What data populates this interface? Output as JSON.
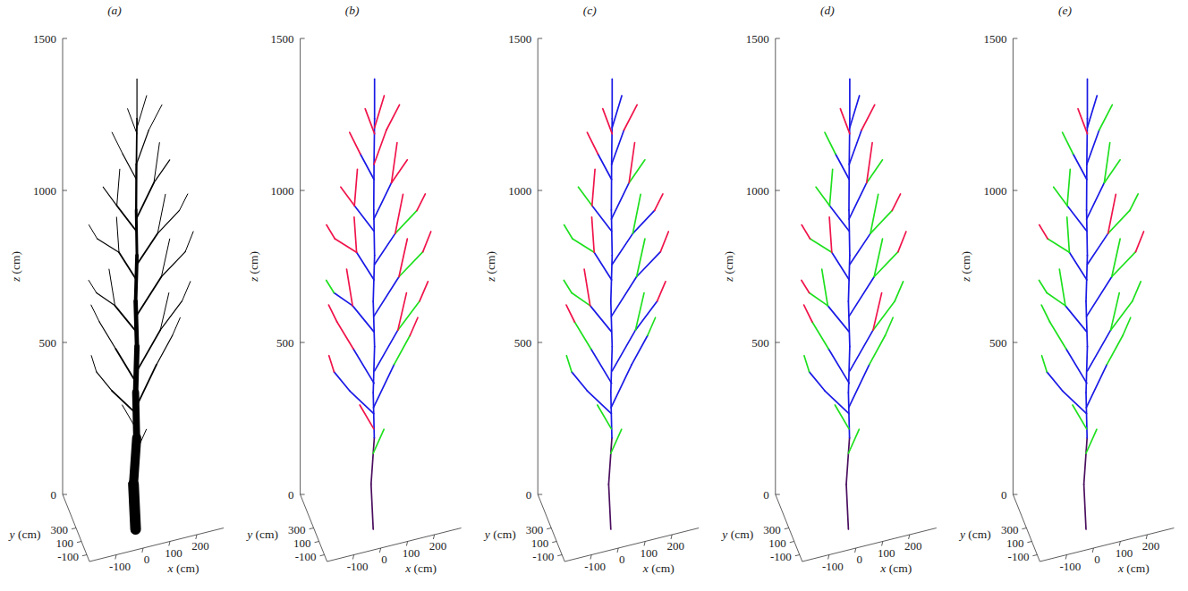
{
  "chart_data": {
    "type": "tree3d",
    "x_label": "x (cm)",
    "y_label": "y (cm)",
    "z_label": "z (cm)",
    "xlim": [
      -200,
      300
    ],
    "ylim": [
      -200,
      800
    ],
    "zlim": [
      0,
      1500
    ],
    "xticks": [
      -100,
      0,
      100,
      200
    ],
    "yticks": [
      -100,
      100,
      300
    ],
    "zticks": [
      0,
      500,
      1000,
      1500
    ],
    "branches": [
      {
        "start": [
          0,
          80,
          0
        ],
        "end": [
          -8,
          80,
          150
        ],
        "diameter": 40
      },
      {
        "start": [
          -8,
          80,
          150
        ],
        "end": [
          4,
          80,
          300
        ],
        "diameter": 34
      },
      {
        "start": [
          4,
          80,
          300
        ],
        "end": [
          0,
          80,
          450
        ],
        "diameter": 26
      },
      {
        "start": [
          0,
          80,
          450
        ],
        "end": [
          5,
          80,
          600
        ],
        "diameter": 20
      },
      {
        "start": [
          5,
          80,
          600
        ],
        "end": [
          0,
          80,
          750
        ],
        "diameter": 16
      },
      {
        "start": [
          0,
          80,
          750
        ],
        "end": [
          5,
          80,
          900
        ],
        "diameter": 13
      },
      {
        "start": [
          5,
          80,
          900
        ],
        "end": [
          2,
          80,
          1050
        ],
        "diameter": 10
      },
      {
        "start": [
          2,
          80,
          1050
        ],
        "end": [
          3,
          80,
          1200
        ],
        "diameter": 8
      },
      {
        "start": [
          3,
          80,
          1200
        ],
        "end": [
          5,
          80,
          1350
        ],
        "diameter": 6
      },
      {
        "start": [
          5,
          80,
          1350
        ],
        "end": [
          5,
          80,
          1480
        ],
        "diameter": 4
      },
      {
        "start": [
          0,
          80,
          250
        ],
        "end": [
          40,
          80,
          320
        ],
        "diameter": 3
      },
      {
        "start": [
          2,
          80,
          330
        ],
        "end": [
          -50,
          80,
          420
        ],
        "diameter": 3
      },
      {
        "start": [
          2,
          80,
          380
        ],
        "end": [
          -90,
          60,
          480
        ],
        "diameter": 6
      },
      {
        "start": [
          -90,
          60,
          480
        ],
        "end": [
          -150,
          40,
          560
        ],
        "diameter": 4
      },
      {
        "start": [
          -150,
          40,
          560
        ],
        "end": [
          -170,
          30,
          620
        ],
        "diameter": 2.5
      },
      {
        "start": [
          1,
          80,
          400
        ],
        "end": [
          80,
          100,
          520
        ],
        "diameter": 6
      },
      {
        "start": [
          80,
          100,
          520
        ],
        "end": [
          140,
          110,
          600
        ],
        "diameter": 4
      },
      {
        "start": [
          140,
          110,
          600
        ],
        "end": [
          170,
          120,
          650
        ],
        "diameter": 2.5
      },
      {
        "start": [
          3,
          80,
          480
        ],
        "end": [
          -70,
          120,
          600
        ],
        "diameter": 6
      },
      {
        "start": [
          -70,
          120,
          600
        ],
        "end": [
          -130,
          130,
          700
        ],
        "diameter": 4
      },
      {
        "start": [
          -130,
          130,
          700
        ],
        "end": [
          -160,
          140,
          760
        ],
        "diameter": 2.5
      },
      {
        "start": [
          5,
          80,
          520
        ],
        "end": [
          90,
          60,
          640
        ],
        "diameter": 6
      },
      {
        "start": [
          90,
          60,
          640
        ],
        "end": [
          170,
          50,
          720
        ],
        "diameter": 4
      },
      {
        "start": [
          90,
          60,
          640
        ],
        "end": [
          120,
          40,
          760
        ],
        "diameter": 2.5
      },
      {
        "start": [
          170,
          50,
          720
        ],
        "end": [
          200,
          40,
          780
        ],
        "diameter": 2.5
      },
      {
        "start": [
          2,
          80,
          650
        ],
        "end": [
          -80,
          50,
          760
        ],
        "diameter": 6
      },
      {
        "start": [
          -80,
          50,
          760
        ],
        "end": [
          -150,
          40,
          820
        ],
        "diameter": 4
      },
      {
        "start": [
          -80,
          50,
          760
        ],
        "end": [
          -100,
          70,
          880
        ],
        "diameter": 2.5
      },
      {
        "start": [
          -150,
          40,
          820
        ],
        "end": [
          -180,
          30,
          870
        ],
        "diameter": 2.5
      },
      {
        "start": [
          2,
          80,
          700
        ],
        "end": [
          100,
          120,
          800
        ],
        "diameter": 6
      },
      {
        "start": [
          100,
          120,
          800
        ],
        "end": [
          190,
          130,
          860
        ],
        "diameter": 4
      },
      {
        "start": [
          100,
          120,
          800
        ],
        "end": [
          130,
          110,
          920
        ],
        "diameter": 2.5
      },
      {
        "start": [
          190,
          130,
          860
        ],
        "end": [
          220,
          130,
          920
        ],
        "diameter": 2.5
      },
      {
        "start": [
          3,
          80,
          820
        ],
        "end": [
          -60,
          100,
          920
        ],
        "diameter": 6
      },
      {
        "start": [
          -60,
          100,
          920
        ],
        "end": [
          -140,
          110,
          980
        ],
        "diameter": 4
      },
      {
        "start": [
          -60,
          100,
          920
        ],
        "end": [
          -70,
          90,
          1040
        ],
        "diameter": 2.5
      },
      {
        "start": [
          -140,
          110,
          980
        ],
        "end": [
          -170,
          120,
          1030
        ],
        "diameter": 2.5
      },
      {
        "start": [
          5,
          80,
          870
        ],
        "end": [
          80,
          60,
          960
        ],
        "diameter": 6
      },
      {
        "start": [
          80,
          60,
          960
        ],
        "end": [
          160,
          50,
          1020
        ],
        "diameter": 4
      },
      {
        "start": [
          80,
          60,
          960
        ],
        "end": [
          110,
          70,
          1080
        ],
        "diameter": 2.5
      },
      {
        "start": [
          160,
          50,
          1020
        ],
        "end": [
          190,
          40,
          1070
        ],
        "diameter": 2.5
      },
      {
        "start": [
          3,
          80,
          980
        ],
        "end": [
          -70,
          80,
          1080
        ],
        "diameter": 6
      },
      {
        "start": [
          -70,
          80,
          1080
        ],
        "end": [
          -120,
          90,
          1150
        ],
        "diameter": 4
      },
      {
        "start": [
          -70,
          80,
          1080
        ],
        "end": [
          -60,
          70,
          1200
        ],
        "diameter": 2.5
      },
      {
        "start": [
          2,
          80,
          1020
        ],
        "end": [
          70,
          100,
          1120
        ],
        "diameter": 6
      },
      {
        "start": [
          70,
          100,
          1120
        ],
        "end": [
          130,
          110,
          1180
        ],
        "diameter": 4
      },
      {
        "start": [
          70,
          100,
          1120
        ],
        "end": [
          90,
          90,
          1250
        ],
        "diameter": 2.5
      },
      {
        "start": [
          3,
          80,
          1150
        ],
        "end": [
          -50,
          60,
          1250
        ],
        "diameter": 4
      },
      {
        "start": [
          -50,
          60,
          1250
        ],
        "end": [
          -90,
          60,
          1330
        ],
        "diameter": 2.5
      },
      {
        "start": [
          3,
          80,
          1200
        ],
        "end": [
          50,
          90,
          1300
        ],
        "diameter": 4
      },
      {
        "start": [
          50,
          90,
          1300
        ],
        "end": [
          100,
          100,
          1370
        ],
        "diameter": 2.5
      },
      {
        "start": [
          5,
          80,
          1300
        ],
        "end": [
          -30,
          80,
          1390
        ],
        "diameter": 2.5
      },
      {
        "start": [
          5,
          80,
          1320
        ],
        "end": [
          40,
          70,
          1420
        ],
        "diameter": 2.5
      }
    ],
    "panels": [
      {
        "title": "(a)",
        "color": "#000000"
      },
      {
        "title": "(b)",
        "colors": [
          "#4b0f5f",
          "#4b0f5f",
          "#1a1ae6",
          "#1a1ae6",
          "#1a1ae6",
          "#1a1ae6",
          "#1a1ae6",
          "#1a1ae6",
          "#1a1ae6",
          "#1a1ae6",
          "#1fe01f",
          "#f0144b",
          "#1a1ae6",
          "#1a1ae6",
          "#f0144b",
          "#1a1ae6",
          "#1fe01f",
          "#f0144b",
          "#1a1ae6",
          "#f0144b",
          "#f0144b",
          "#1a1ae6",
          "#1fe01f",
          "#f0144b",
          "#f0144b",
          "#1a1ae6",
          "#1a1ae6",
          "#f0144b",
          "#1fe01f",
          "#1a1ae6",
          "#1fe01f",
          "#f0144b",
          "#f0144b",
          "#1a1ae6",
          "#f0144b",
          "#f0144b",
          "#f0144b",
          "#1a1ae6",
          "#1fe01f",
          "#f0144b",
          "#f0144b",
          "#1a1ae6",
          "#f0144b",
          "#f0144b",
          "#1a1ae6",
          "#f0144b",
          "#f0144b",
          "#1a1ae6",
          "#f0144b",
          "#f0144b",
          "#f0144b",
          "#f0144b",
          "#f0144b"
        ]
      },
      {
        "title": "(c)",
        "colors": [
          "#4b0f5f",
          "#4b0f5f",
          "#1a1ae6",
          "#1a1ae6",
          "#1a1ae6",
          "#1a1ae6",
          "#1a1ae6",
          "#1a1ae6",
          "#1a1ae6",
          "#1a1ae6",
          "#1fe01f",
          "#1fe01f",
          "#1a1ae6",
          "#1a1ae6",
          "#1fe01f",
          "#1a1ae6",
          "#1a1ae6",
          "#1fe01f",
          "#1a1ae6",
          "#1fe01f",
          "#f0144b",
          "#1a1ae6",
          "#1a1ae6",
          "#1fe01f",
          "#f0144b",
          "#1a1ae6",
          "#1fe01f",
          "#f0144b",
          "#1fe01f",
          "#1a1ae6",
          "#1a1ae6",
          "#1fe01f",
          "#f0144b",
          "#1a1ae6",
          "#1fe01f",
          "#f0144b",
          "#1fe01f",
          "#1a1ae6",
          "#1a1ae6",
          "#1fe01f",
          "#f0144b",
          "#1a1ae6",
          "#1fe01f",
          "#f0144b",
          "#1a1ae6",
          "#1fe01f",
          "#f0144b",
          "#1a1ae6",
          "#f0144b",
          "#1a1ae6",
          "#f0144b",
          "#f0144b",
          "#1a1ae6"
        ]
      },
      {
        "title": "(d)",
        "colors": [
          "#4b0f5f",
          "#4b0f5f",
          "#1a1ae6",
          "#1a1ae6",
          "#1a1ae6",
          "#1a1ae6",
          "#1a1ae6",
          "#1a1ae6",
          "#1a1ae6",
          "#1a1ae6",
          "#1fe01f",
          "#1fe01f",
          "#1a1ae6",
          "#1a1ae6",
          "#1fe01f",
          "#1a1ae6",
          "#1fe01f",
          "#1fe01f",
          "#1a1ae6",
          "#1fe01f",
          "#f0144b",
          "#1a1ae6",
          "#1fe01f",
          "#f0144b",
          "#1fe01f",
          "#1a1ae6",
          "#1fe01f",
          "#1fe01f",
          "#f0144b",
          "#1a1ae6",
          "#1fe01f",
          "#1fe01f",
          "#f0144b",
          "#1a1ae6",
          "#1fe01f",
          "#f0144b",
          "#f0144b",
          "#1a1ae6",
          "#1fe01f",
          "#1fe01f",
          "#f0144b",
          "#1a1ae6",
          "#1fe01f",
          "#1fe01f",
          "#1a1ae6",
          "#1fe01f",
          "#f0144b",
          "#1a1ae6",
          "#1fe01f",
          "#1a1ae6",
          "#f0144b",
          "#f0144b",
          "#1a1ae6"
        ]
      },
      {
        "title": "(e)",
        "colors": [
          "#4b0f5f",
          "#4b0f5f",
          "#1a1ae6",
          "#1a1ae6",
          "#1a1ae6",
          "#1a1ae6",
          "#1a1ae6",
          "#1a1ae6",
          "#1a1ae6",
          "#1a1ae6",
          "#1fe01f",
          "#1fe01f",
          "#1a1ae6",
          "#1a1ae6",
          "#1fe01f",
          "#1a1ae6",
          "#1fe01f",
          "#1fe01f",
          "#1a1ae6",
          "#1fe01f",
          "#1fe01f",
          "#1a1ae6",
          "#1fe01f",
          "#1fe01f",
          "#1fe01f",
          "#1a1ae6",
          "#1fe01f",
          "#1fe01f",
          "#1fe01f",
          "#1a1ae6",
          "#1fe01f",
          "#1fe01f",
          "#f0144b",
          "#1a1ae6",
          "#1fe01f",
          "#1fe01f",
          "#f0144b",
          "#1a1ae6",
          "#1fe01f",
          "#f0144b",
          "#1fe01f",
          "#1a1ae6",
          "#1fe01f",
          "#1fe01f",
          "#1a1ae6",
          "#1fe01f",
          "#1fe01f",
          "#1a1ae6",
          "#1fe01f",
          "#1a1ae6",
          "#1fe01f",
          "#f0144b",
          "#1a1ae6"
        ]
      }
    ]
  }
}
